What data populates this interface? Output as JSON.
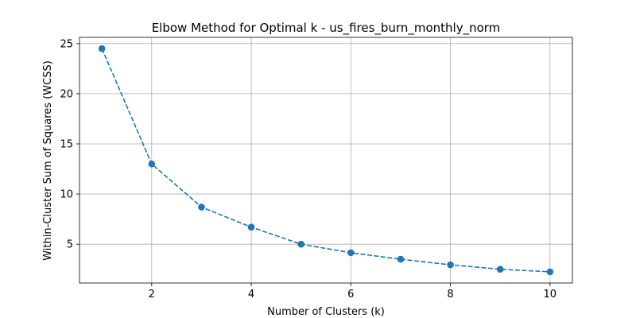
{
  "chart_data": {
    "type": "line",
    "title": "Elbow Method for Optimal k - us_fires_burn_monthly_norm",
    "xlabel": "Number of Clusters (k)",
    "ylabel": "Within-Cluster Sum of Squares (WCSS)",
    "x": [
      1,
      2,
      3,
      4,
      5,
      6,
      7,
      8,
      9,
      10
    ],
    "series": [
      {
        "values": [
          24.5,
          13.0,
          8.7,
          6.7,
          5.0,
          4.15,
          3.5,
          2.95,
          2.5,
          2.25
        ]
      }
    ],
    "xlim": [
      0.55,
      10.45
    ],
    "ylim": [
      1.13,
      25.62
    ],
    "xticks": [
      2,
      4,
      6,
      8,
      10
    ],
    "yticks": [
      5,
      10,
      15,
      20,
      25
    ],
    "grid": true,
    "line_style": "dashed",
    "marker": "circle",
    "color": "#1f77b4"
  }
}
